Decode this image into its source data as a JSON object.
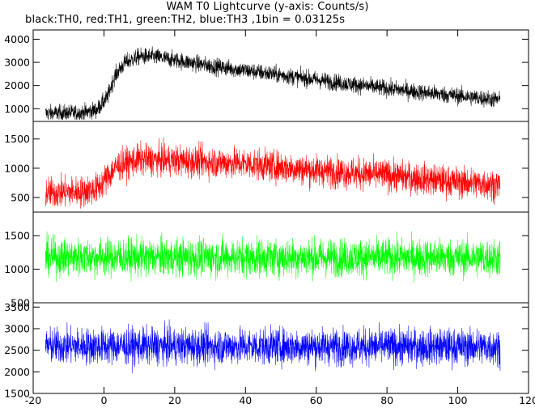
{
  "chart_data": {
    "type": "line",
    "title": "WAM T0 Lightcurve (y-axis: Counts/s)",
    "subtitle": "black:TH0, red:TH1, green:TH2, blue:TH3 ,1bin = 0.03125s",
    "xlim": [
      -20,
      120
    ],
    "x_ticks": [
      -20,
      0,
      20,
      40,
      60,
      80,
      100,
      120
    ],
    "x_range": [
      -16.5,
      112
    ],
    "panels": [
      {
        "series": "TH0",
        "color": "#000000",
        "ylim": [
          450,
          4400
        ],
        "y_ticks": [
          1000,
          2000,
          3000,
          4000
        ],
        "profile": [
          [
            -16.5,
            800
          ],
          [
            -6,
            820
          ],
          [
            -2,
            950
          ],
          [
            1,
            1500
          ],
          [
            3,
            2400
          ],
          [
            6,
            3000
          ],
          [
            10,
            3250
          ],
          [
            14,
            3250
          ],
          [
            20,
            3100
          ],
          [
            30,
            2850
          ],
          [
            50,
            2450
          ],
          [
            70,
            2050
          ],
          [
            90,
            1700
          ],
          [
            112,
            1380
          ]
        ],
        "noise": 260
      },
      {
        "series": "TH1",
        "color": "#ff0000",
        "ylim": [
          250,
          1800
        ],
        "y_ticks": [
          500,
          1000,
          1500
        ],
        "profile": [
          [
            -16.5,
            580
          ],
          [
            -6,
            600
          ],
          [
            -2,
            650
          ],
          [
            1,
            850
          ],
          [
            4,
            1050
          ],
          [
            10,
            1150
          ],
          [
            20,
            1130
          ],
          [
            40,
            1080
          ],
          [
            60,
            960
          ],
          [
            80,
            880
          ],
          [
            100,
            760
          ],
          [
            112,
            720
          ]
        ],
        "noise": 190
      },
      {
        "series": "TH2",
        "color": "#00ff00",
        "ylim": [
          500,
          1850
        ],
        "y_ticks": [
          500,
          1000,
          1500
        ],
        "profile": [
          [
            -16.5,
            1180
          ],
          [
            112,
            1170
          ]
        ],
        "noise": 200
      },
      {
        "series": "TH3",
        "color": "#0000ff",
        "ylim": [
          1500,
          3600
        ],
        "y_ticks": [
          1500,
          2000,
          2500,
          3000,
          3500
        ],
        "profile": [
          [
            -16.5,
            2600
          ],
          [
            112,
            2580
          ]
        ],
        "noise": 300
      }
    ]
  }
}
